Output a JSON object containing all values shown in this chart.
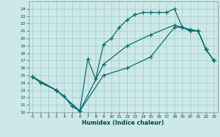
{
  "xlabel": "Humidex (Indice chaleur)",
  "bg_color": "#cce8e8",
  "grid_color": "#aacccc",
  "line_color": "#006666",
  "xlim": [
    -0.5,
    23.5
  ],
  "ylim": [
    10,
    25
  ],
  "xticks": [
    0,
    1,
    2,
    3,
    4,
    5,
    6,
    7,
    8,
    9,
    10,
    11,
    12,
    13,
    14,
    15,
    16,
    17,
    18,
    19,
    20,
    21,
    22,
    23
  ],
  "yticks": [
    10,
    11,
    12,
    13,
    14,
    15,
    16,
    17,
    18,
    19,
    20,
    21,
    22,
    23,
    24
  ],
  "line1_x": [
    0,
    1,
    3,
    4,
    5,
    6,
    7,
    8,
    9,
    10,
    11,
    12,
    13,
    14,
    15,
    16,
    17,
    18,
    19,
    20,
    21,
    22,
    23
  ],
  "line1_y": [
    14.8,
    14.0,
    13.0,
    12.2,
    10.8,
    10.2,
    17.2,
    14.5,
    19.2,
    20.0,
    21.5,
    22.5,
    23.2,
    23.5,
    23.5,
    23.5,
    23.5,
    24.0,
    21.5,
    21.2,
    21.0,
    18.5,
    17.0
  ],
  "line2_x": [
    0,
    3,
    6,
    9,
    12,
    15,
    18,
    19,
    20,
    21,
    22,
    23
  ],
  "line2_y": [
    14.8,
    13.0,
    10.2,
    15.0,
    16.0,
    17.5,
    21.5,
    21.5,
    21.0,
    21.0,
    18.5,
    17.0
  ],
  "line3_x": [
    0,
    3,
    6,
    9,
    12,
    15,
    18,
    19,
    20,
    21,
    22,
    23
  ],
  "line3_y": [
    14.8,
    13.0,
    10.2,
    16.5,
    19.0,
    20.5,
    21.8,
    21.5,
    21.0,
    21.0,
    18.5,
    17.0
  ]
}
